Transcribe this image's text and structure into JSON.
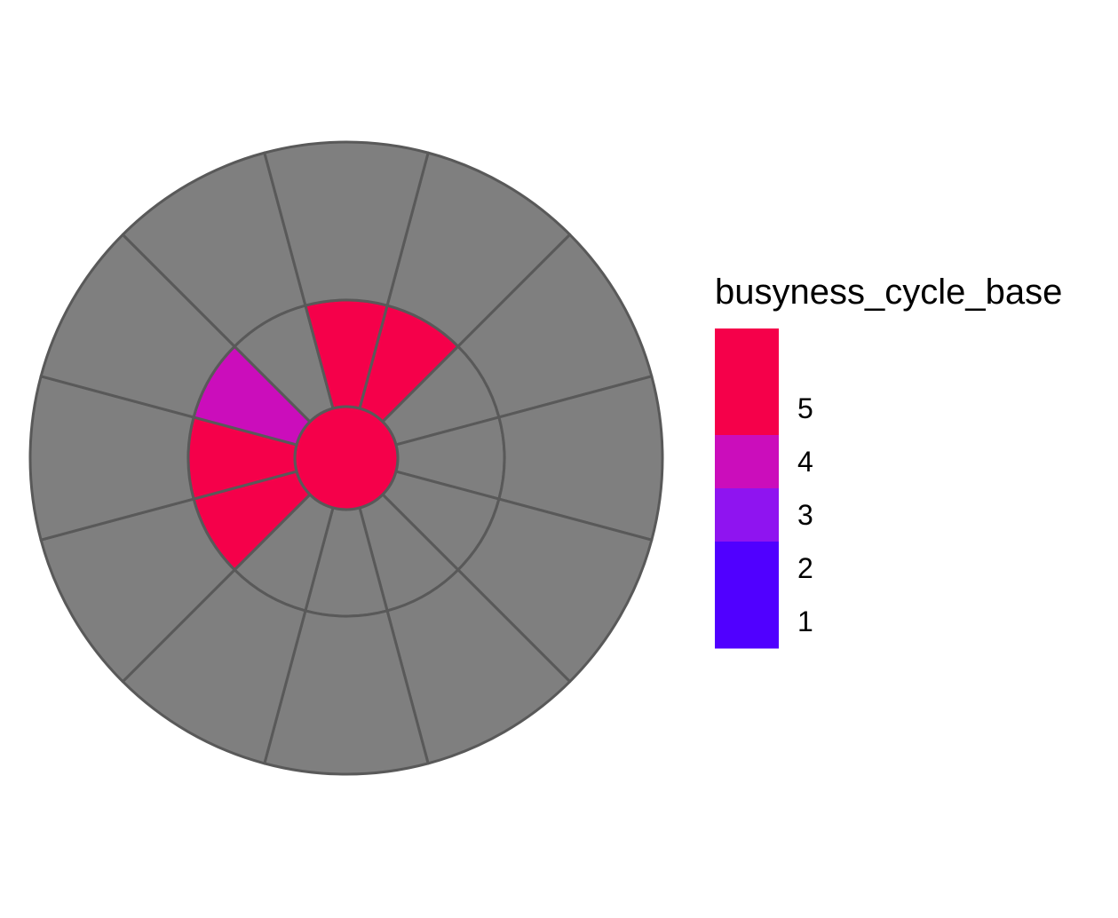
{
  "chart_data": {
    "type": "polar-heatmap",
    "legend": {
      "title": "busyness_cycle_base",
      "type": "binned",
      "placement": "right",
      "breaks": [
        1,
        2,
        3,
        4,
        5
      ],
      "bins": [
        {
          "range": [
            0.5,
            1.5
          ],
          "color": "#5000FF"
        },
        {
          "range": [
            1.5,
            2.5
          ],
          "color": "#5000FF"
        },
        {
          "range": [
            2.5,
            3.5
          ],
          "color": "#8F14F0"
        },
        {
          "range": [
            3.5,
            4.5
          ],
          "color": "#CB0DBB"
        },
        {
          "range": [
            4.5,
            5.5
          ],
          "color": "#F5004A"
        },
        {
          "range": [
            5.5,
            6.5
          ],
          "color": "#F5004A"
        }
      ]
    },
    "na_color": "#7F7F7F",
    "border_color": "#595959",
    "rings": [
      {
        "name": "inner",
        "segments": 1,
        "values": [
          5
        ]
      },
      {
        "name": "middle",
        "segments": 12,
        "values": [
          5,
          null,
          null,
          null,
          null,
          null,
          null,
          5,
          5,
          3.5,
          null,
          5
        ]
      },
      {
        "name": "outer",
        "segments": 12,
        "values": [
          null,
          null,
          null,
          null,
          null,
          null,
          null,
          null,
          null,
          null,
          null,
          null
        ]
      }
    ]
  }
}
